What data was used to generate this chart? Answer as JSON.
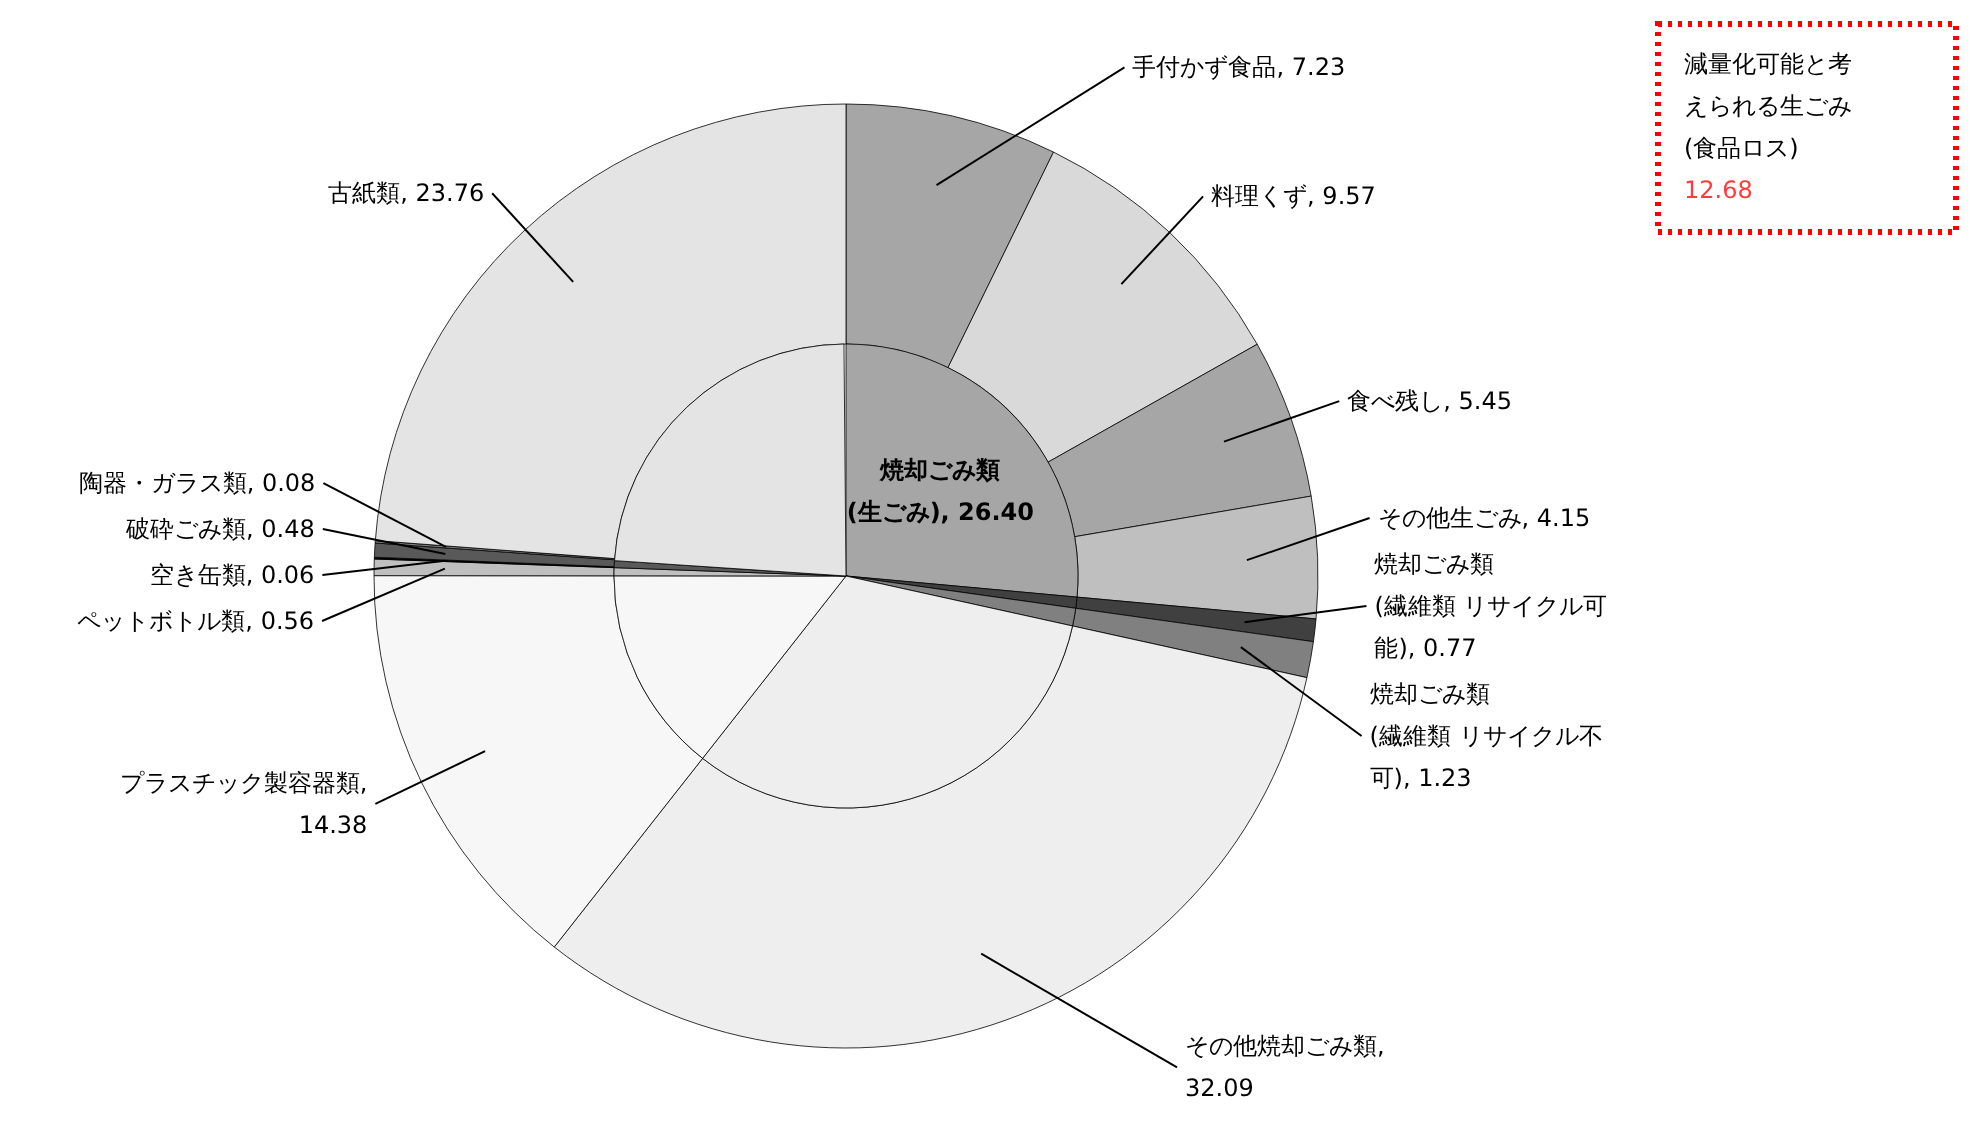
{
  "chart_data": {
    "type": "pie",
    "categories": [
      "手付かず食品",
      "料理くず",
      "食べ残し",
      "その他生ごみ",
      "焼却ごみ類(繊維類 リサイクル可能)",
      "焼却ごみ類(繊維類 リサイクル不可)",
      "その他焼却ごみ類",
      "プラスチック製容器類",
      "ペットボトル類",
      "空き缶類",
      "破砕ごみ類",
      "陶器・ガラス類",
      "古紙類"
    ],
    "series": [
      {
        "values": [
          7.23,
          9.57,
          5.45,
          4.15,
          0.77,
          1.23,
          32.09,
          14.38,
          0.56,
          0.06,
          0.48,
          0.08,
          23.76
        ],
        "value_labels": [
          ", 7.23",
          ", 9.57",
          ", 5.45",
          ", 4.15",
          ", 0.77",
          ", 1.23",
          ", 32.09",
          ", 14.38",
          ", 0.56",
          ", 0.06",
          ", 0.48",
          ", 0.08",
          ", 23.76"
        ],
        "colors": [
          "#a6a6a6",
          "#d9d9d9",
          "#a6a6a6",
          "#bfbfbf",
          "#404040",
          "#808080",
          "#eeeeee",
          "#f7f7f7",
          "#bfbfbf",
          "#000000",
          "#595959",
          "#7f7f7f",
          "#e4e4e4"
        ]
      },
      {
        "name": "焼却ごみ類(生ごみ)",
        "values": [
          26.4,
          null,
          null,
          null,
          0.77,
          1.23,
          32.09,
          14.38,
          0.56,
          null,
          0.48,
          null,
          23.76
        ],
        "value_labels": [
          ", 26.40",
          null,
          null,
          null,
          null,
          null,
          null,
          null,
          null,
          null,
          null,
          null,
          null
        ],
        "colors": [
          "#a6a6a6",
          null,
          null,
          null,
          "#404040",
          "#808080",
          "#eeeeee",
          "#f7f7f7",
          "#bfbfbf",
          null,
          "#595959",
          null,
          "#e4e4e4"
        ]
      }
    ],
    "annotations": [
      "減量化可能と考えられる生ごみ(食品ロス)",
      "12.68"
    ]
  }
}
